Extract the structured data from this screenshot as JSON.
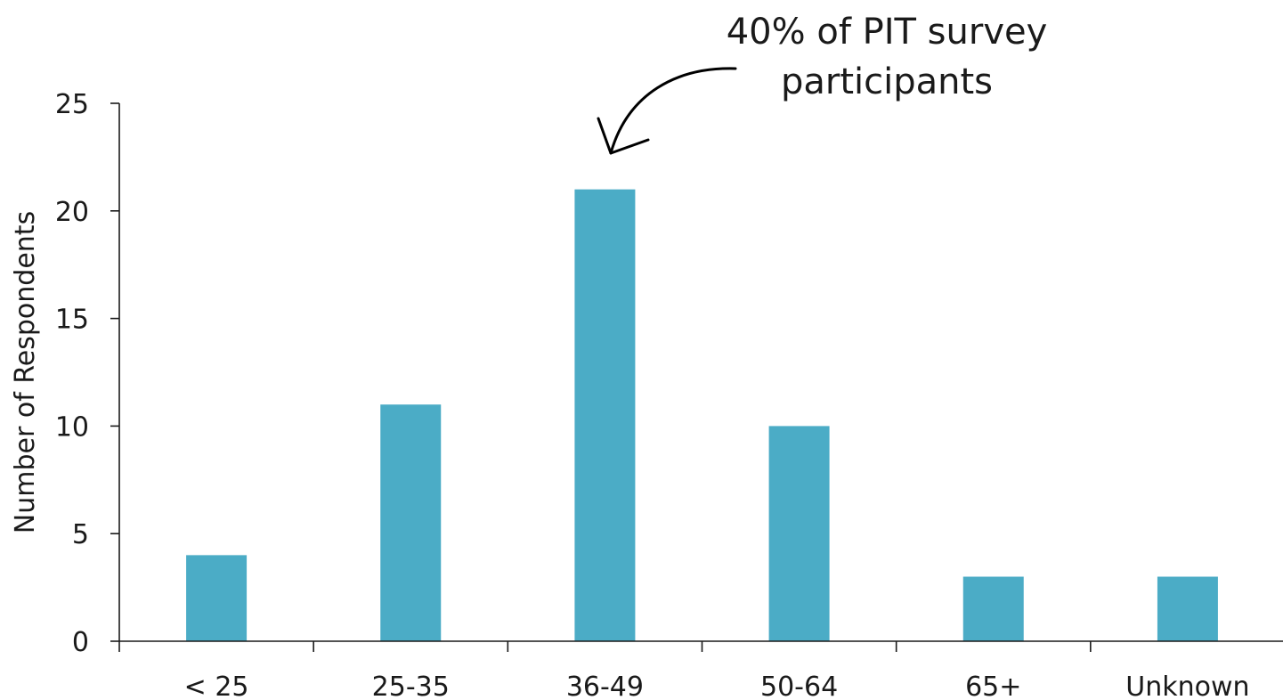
{
  "chart_data": {
    "type": "bar",
    "categories": [
      "< 25",
      "25-35",
      "36-49",
      "50-64",
      "65+",
      "Unknown"
    ],
    "values": [
      4,
      11,
      21,
      10,
      3,
      3
    ],
    "ylabel": "Number of Respondents",
    "xlabel": "",
    "ylim": [
      0,
      25
    ],
    "yticks": [
      0,
      5,
      10,
      15,
      20,
      25
    ],
    "grid": false,
    "bar_color": "#4BACC6",
    "annotation": {
      "lines": [
        "40% of PIT survey",
        "participants"
      ],
      "target_category": "36-49"
    }
  }
}
